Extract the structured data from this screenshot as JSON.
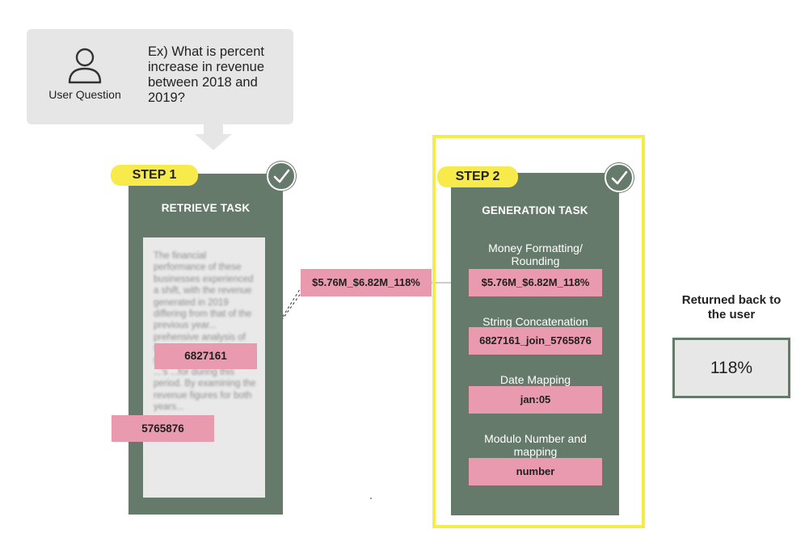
{
  "user_question": {
    "label": "User Question",
    "question": "Ex) What is percent increase in revenue between 2018 and 2019?"
  },
  "step1": {
    "badge": "STEP 1",
    "title": "RETRIEVE TASK",
    "document_text": "The financial performance of these businesses experienced a shift, with the revenue generated in 2019 differing from that of the previous year... prehensive analysis of the growth or decline in the economic activities ...'s ...for during this period. By examining the revenue figures for both years...",
    "value_2019": "6827161",
    "value_2018": "5765876"
  },
  "intermediate_output": "$5.76M_$6.82M_118%",
  "step2": {
    "badge": "STEP 2",
    "title": "GENERATION TASK",
    "tasks": [
      {
        "label": "Money Formatting/ Rounding",
        "value": "$5.76M_$6.82M_118%"
      },
      {
        "label": "String Concatenation",
        "value": "6827161_join_5765876"
      },
      {
        "label": "Date Mapping",
        "value": "jan:05"
      },
      {
        "label": "Modulo Number and mapping",
        "value": "number"
      }
    ]
  },
  "result": {
    "label": "Returned back to the user",
    "value": "118%"
  },
  "colors": {
    "panel": "#667a6c",
    "badge": "#f7ea4a",
    "tag": "#e99aae",
    "highlight": "#f5ec4a",
    "bubble": "#e6e6e6"
  }
}
